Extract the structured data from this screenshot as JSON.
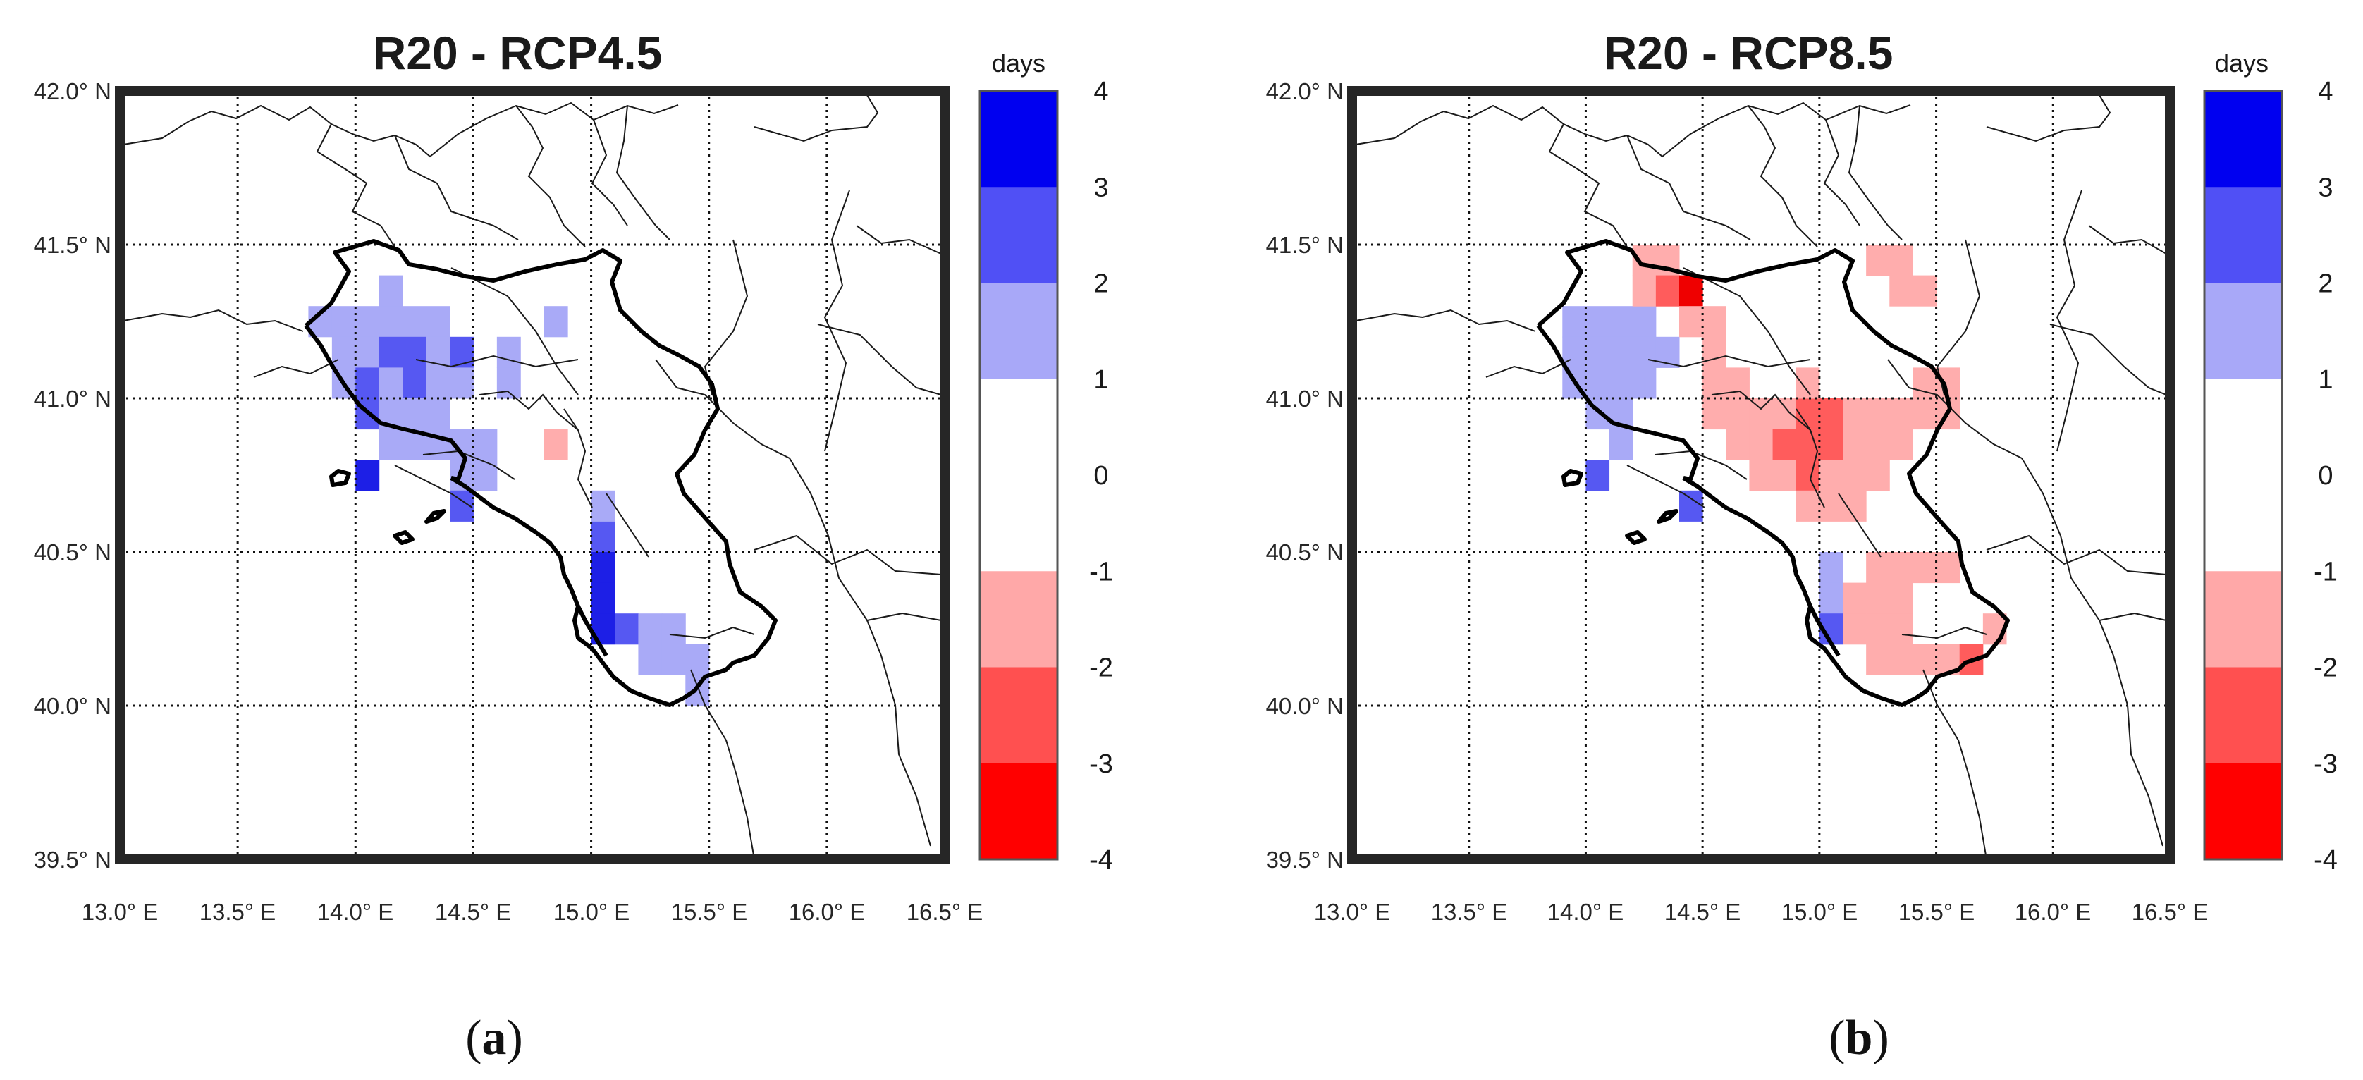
{
  "figure": {
    "panels": [
      {
        "id": "a",
        "label": "a",
        "title": "R20 - RCP4.5",
        "colorbar_unit": "days"
      },
      {
        "id": "b",
        "label": "b",
        "title": "R20 - RCP8.5",
        "colorbar_unit": "days"
      }
    ],
    "lat_ticks": [
      "42.0° N",
      "41.5° N",
      "41.0° N",
      "40.5° N",
      "40.0° N",
      "39.5° N"
    ],
    "lon_ticks": [
      "13.0° E",
      "13.5° E",
      "14.0° E",
      "14.5° E",
      "15.0° E",
      "15.5° E",
      "16.0° E",
      "16.5° E"
    ],
    "colorbar_ticks": [
      "4",
      "3",
      "2",
      "1",
      "0",
      "-1",
      "-2",
      "-3",
      "-4"
    ],
    "colorbar_colors": [
      "#0000f0",
      "#5050f5",
      "#a8a8f8",
      "#ffffff",
      "#ffffff",
      "#ffa8a8",
      "#ff5050",
      "#ff0000"
    ],
    "colors": {
      "blue_1_2": "#a9aaf7",
      "blue_2_3": "#5658f2",
      "blue_3_4": "#1d1fe6",
      "red_1_2": "#ffadad",
      "red_2_3": "#ff5c5c",
      "red_3_4": "#ef0000",
      "frame": "#262626"
    }
  },
  "chart_data": [
    {
      "type": "heatmap",
      "title": "R20 - RCP4.5",
      "colorbar_label": "days",
      "colorbar_range": [
        -4,
        4
      ],
      "colorbar_levels": [
        -4,
        -3,
        -2,
        -1,
        0,
        1,
        2,
        3,
        4
      ],
      "xlim": [
        13.0,
        16.5
      ],
      "ylim": [
        39.5,
        42.0
      ],
      "cell_size_deg": 0.1,
      "cells": [
        {
          "lon": 13.8,
          "lat": 41.2,
          "value": 1.5
        },
        {
          "lon": 13.9,
          "lat": 41.2,
          "value": 1.5
        },
        {
          "lon": 14.0,
          "lat": 41.2,
          "value": 1.5
        },
        {
          "lon": 14.1,
          "lat": 41.2,
          "value": 1.5
        },
        {
          "lon": 14.2,
          "lat": 41.2,
          "value": 1.5
        },
        {
          "lon": 14.3,
          "lat": 41.2,
          "value": 1.5
        },
        {
          "lon": 14.1,
          "lat": 41.3,
          "value": 1.5
        },
        {
          "lon": 13.9,
          "lat": 41.1,
          "value": 1.5
        },
        {
          "lon": 14.0,
          "lat": 41.1,
          "value": 1.5
        },
        {
          "lon": 14.1,
          "lat": 41.1,
          "value": 2.5
        },
        {
          "lon": 14.2,
          "lat": 41.1,
          "value": 2.5
        },
        {
          "lon": 14.3,
          "lat": 41.1,
          "value": 1.5
        },
        {
          "lon": 14.4,
          "lat": 41.1,
          "value": 2.5
        },
        {
          "lon": 13.9,
          "lat": 41.0,
          "value": 1.5
        },
        {
          "lon": 14.0,
          "lat": 41.0,
          "value": 2.5
        },
        {
          "lon": 14.1,
          "lat": 41.0,
          "value": 1.5
        },
        {
          "lon": 14.2,
          "lat": 41.0,
          "value": 2.5
        },
        {
          "lon": 14.3,
          "lat": 41.0,
          "value": 1.5
        },
        {
          "lon": 14.4,
          "lat": 41.0,
          "value": 1.5
        },
        {
          "lon": 14.0,
          "lat": 40.9,
          "value": 2.5
        },
        {
          "lon": 14.1,
          "lat": 40.9,
          "value": 1.5
        },
        {
          "lon": 14.2,
          "lat": 40.9,
          "value": 1.5
        },
        {
          "lon": 14.3,
          "lat": 40.9,
          "value": 1.5
        },
        {
          "lon": 14.1,
          "lat": 40.8,
          "value": 1.5
        },
        {
          "lon": 14.2,
          "lat": 40.8,
          "value": 1.5
        },
        {
          "lon": 14.3,
          "lat": 40.8,
          "value": 1.5
        },
        {
          "lon": 14.4,
          "lat": 40.8,
          "value": 1.5
        },
        {
          "lon": 14.5,
          "lat": 40.8,
          "value": 1.5
        },
        {
          "lon": 14.0,
          "lat": 40.7,
          "value": 3.5
        },
        {
          "lon": 14.4,
          "lat": 40.7,
          "value": 1.5
        },
        {
          "lon": 14.5,
          "lat": 40.7,
          "value": 1.5
        },
        {
          "lon": 14.4,
          "lat": 40.6,
          "value": 2.5
        },
        {
          "lon": 14.6,
          "lat": 41.0,
          "value": 1.5
        },
        {
          "lon": 14.6,
          "lat": 41.1,
          "value": 1.5
        },
        {
          "lon": 14.8,
          "lat": 41.2,
          "value": 1.5
        },
        {
          "lon": 14.8,
          "lat": 40.8,
          "value": -1.5
        },
        {
          "lon": 15.0,
          "lat": 40.5,
          "value": 2.5
        },
        {
          "lon": 15.0,
          "lat": 40.4,
          "value": 3.5
        },
        {
          "lon": 15.0,
          "lat": 40.3,
          "value": 3.5
        },
        {
          "lon": 15.0,
          "lat": 40.2,
          "value": 3.5
        },
        {
          "lon": 15.1,
          "lat": 40.2,
          "value": 2.5
        },
        {
          "lon": 15.2,
          "lat": 40.2,
          "value": 1.5
        },
        {
          "lon": 15.3,
          "lat": 40.2,
          "value": 1.5
        },
        {
          "lon": 15.2,
          "lat": 40.1,
          "value": 1.5
        },
        {
          "lon": 15.3,
          "lat": 40.1,
          "value": 1.5
        },
        {
          "lon": 15.4,
          "lat": 40.1,
          "value": 1.5
        },
        {
          "lon": 15.4,
          "lat": 40.0,
          "value": 1.5
        },
        {
          "lon": 15.0,
          "lat": 40.6,
          "value": 1.5
        }
      ]
    },
    {
      "type": "heatmap",
      "title": "R20 - RCP8.5",
      "colorbar_label": "days",
      "colorbar_range": [
        -4,
        4
      ],
      "colorbar_levels": [
        -4,
        -3,
        -2,
        -1,
        0,
        1,
        2,
        3,
        4
      ],
      "xlim": [
        13.0,
        16.5
      ],
      "ylim": [
        39.5,
        42.0
      ],
      "cell_size_deg": 0.1,
      "cells": [
        {
          "lon": 13.9,
          "lat": 41.2,
          "value": 1.5
        },
        {
          "lon": 14.0,
          "lat": 41.2,
          "value": 1.5
        },
        {
          "lon": 14.1,
          "lat": 41.2,
          "value": 1.5
        },
        {
          "lon": 14.2,
          "lat": 41.2,
          "value": 1.5
        },
        {
          "lon": 13.9,
          "lat": 41.1,
          "value": 1.5
        },
        {
          "lon": 14.0,
          "lat": 41.1,
          "value": 1.5
        },
        {
          "lon": 14.1,
          "lat": 41.1,
          "value": 1.5
        },
        {
          "lon": 14.2,
          "lat": 41.1,
          "value": 1.5
        },
        {
          "lon": 14.3,
          "lat": 41.1,
          "value": 1.5
        },
        {
          "lon": 13.9,
          "lat": 41.0,
          "value": 1.5
        },
        {
          "lon": 14.0,
          "lat": 41.0,
          "value": 1.5
        },
        {
          "lon": 14.1,
          "lat": 41.0,
          "value": 1.5
        },
        {
          "lon": 14.2,
          "lat": 41.0,
          "value": 1.5
        },
        {
          "lon": 14.0,
          "lat": 40.9,
          "value": 1.5
        },
        {
          "lon": 14.1,
          "lat": 40.9,
          "value": 1.5
        },
        {
          "lon": 14.1,
          "lat": 40.8,
          "value": 1.5
        },
        {
          "lon": 14.0,
          "lat": 40.7,
          "value": 2.5
        },
        {
          "lon": 14.4,
          "lat": 40.6,
          "value": 2.5
        },
        {
          "lon": 14.2,
          "lat": 41.4,
          "value": -1.5
        },
        {
          "lon": 14.3,
          "lat": 41.4,
          "value": -1.5
        },
        {
          "lon": 14.2,
          "lat": 41.3,
          "value": -1.5
        },
        {
          "lon": 14.3,
          "lat": 41.3,
          "value": -2.5
        },
        {
          "lon": 14.4,
          "lat": 41.3,
          "value": -3.5
        },
        {
          "lon": 14.4,
          "lat": 41.2,
          "value": -1.5
        },
        {
          "lon": 14.5,
          "lat": 41.2,
          "value": -1.5
        },
        {
          "lon": 14.5,
          "lat": 41.1,
          "value": -1.5
        },
        {
          "lon": 15.2,
          "lat": 41.4,
          "value": -1.5
        },
        {
          "lon": 15.3,
          "lat": 41.4,
          "value": -1.5
        },
        {
          "lon": 15.3,
          "lat": 41.3,
          "value": -1.5
        },
        {
          "lon": 15.4,
          "lat": 41.3,
          "value": -1.5
        },
        {
          "lon": 14.5,
          "lat": 41.0,
          "value": -1.5
        },
        {
          "lon": 14.6,
          "lat": 41.0,
          "value": -1.5
        },
        {
          "lon": 14.5,
          "lat": 40.9,
          "value": -1.5
        },
        {
          "lon": 14.6,
          "lat": 40.9,
          "value": -1.5
        },
        {
          "lon": 14.7,
          "lat": 40.9,
          "value": -1.5
        },
        {
          "lon": 14.8,
          "lat": 40.9,
          "value": -1.5
        },
        {
          "lon": 14.9,
          "lat": 40.9,
          "value": -2.5
        },
        {
          "lon": 15.0,
          "lat": 40.9,
          "value": -2.5
        },
        {
          "lon": 15.1,
          "lat": 40.9,
          "value": -1.5
        },
        {
          "lon": 15.2,
          "lat": 40.9,
          "value": -1.5
        },
        {
          "lon": 15.3,
          "lat": 40.9,
          "value": -1.5
        },
        {
          "lon": 15.4,
          "lat": 40.9,
          "value": -1.5
        },
        {
          "lon": 15.5,
          "lat": 40.9,
          "value": -1.5
        },
        {
          "lon": 15.5,
          "lat": 41.0,
          "value": -1.5
        },
        {
          "lon": 15.4,
          "lat": 41.0,
          "value": -1.5
        },
        {
          "lon": 14.9,
          "lat": 41.0,
          "value": -1.5
        },
        {
          "lon": 14.6,
          "lat": 40.8,
          "value": -1.5
        },
        {
          "lon": 14.7,
          "lat": 40.8,
          "value": -1.5
        },
        {
          "lon": 14.8,
          "lat": 40.8,
          "value": -2.5
        },
        {
          "lon": 14.9,
          "lat": 40.8,
          "value": -2.5
        },
        {
          "lon": 15.0,
          "lat": 40.8,
          "value": -2.5
        },
        {
          "lon": 15.1,
          "lat": 40.8,
          "value": -1.5
        },
        {
          "lon": 15.2,
          "lat": 40.8,
          "value": -1.5
        },
        {
          "lon": 15.3,
          "lat": 40.8,
          "value": -1.5
        },
        {
          "lon": 14.7,
          "lat": 40.7,
          "value": -1.5
        },
        {
          "lon": 14.8,
          "lat": 40.7,
          "value": -1.5
        },
        {
          "lon": 14.9,
          "lat": 40.7,
          "value": -2.5
        },
        {
          "lon": 15.0,
          "lat": 40.7,
          "value": -1.5
        },
        {
          "lon": 15.1,
          "lat": 40.7,
          "value": -1.5
        },
        {
          "lon": 15.2,
          "lat": 40.7,
          "value": -1.5
        },
        {
          "lon": 14.9,
          "lat": 40.6,
          "value": -1.5
        },
        {
          "lon": 15.0,
          "lat": 40.6,
          "value": -1.5
        },
        {
          "lon": 15.1,
          "lat": 40.6,
          "value": -1.5
        },
        {
          "lon": 15.0,
          "lat": 40.4,
          "value": 1.5
        },
        {
          "lon": 15.0,
          "lat": 40.3,
          "value": 1.5
        },
        {
          "lon": 15.0,
          "lat": 40.2,
          "value": 2.5
        },
        {
          "lon": 15.2,
          "lat": 40.4,
          "value": -1.5
        },
        {
          "lon": 15.3,
          "lat": 40.4,
          "value": -1.5
        },
        {
          "lon": 15.4,
          "lat": 40.4,
          "value": -1.5
        },
        {
          "lon": 15.5,
          "lat": 40.4,
          "value": -1.5
        },
        {
          "lon": 15.1,
          "lat": 40.3,
          "value": -1.5
        },
        {
          "lon": 15.2,
          "lat": 40.3,
          "value": -1.5
        },
        {
          "lon": 15.3,
          "lat": 40.3,
          "value": -1.5
        },
        {
          "lon": 15.1,
          "lat": 40.2,
          "value": -1.5
        },
        {
          "lon": 15.2,
          "lat": 40.2,
          "value": -1.5
        },
        {
          "lon": 15.3,
          "lat": 40.2,
          "value": -1.5
        },
        {
          "lon": 15.2,
          "lat": 40.1,
          "value": -1.5
        },
        {
          "lon": 15.3,
          "lat": 40.1,
          "value": -1.5
        },
        {
          "lon": 15.4,
          "lat": 40.1,
          "value": -1.5
        },
        {
          "lon": 15.5,
          "lat": 40.1,
          "value": -1.5
        },
        {
          "lon": 15.6,
          "lat": 40.1,
          "value": -2.5
        },
        {
          "lon": 15.7,
          "lat": 40.2,
          "value": -1.5
        }
      ]
    }
  ]
}
